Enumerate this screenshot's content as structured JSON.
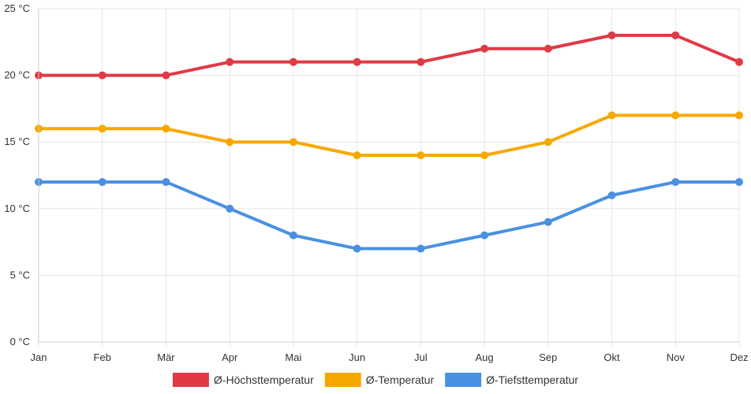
{
  "chart_data": {
    "type": "line",
    "title": "",
    "xlabel": "",
    "ylabel": "",
    "categories": [
      "Jan",
      "Feb",
      "Mär",
      "Apr",
      "Mai",
      "Jun",
      "Jul",
      "Aug",
      "Sep",
      "Okt",
      "Nov",
      "Dez"
    ],
    "y_ticks": [
      "0 °C",
      "5 °C",
      "10 °C",
      "15 °C",
      "20 °C",
      "25 °C"
    ],
    "y_tick_values": [
      0,
      5,
      10,
      15,
      20,
      25
    ],
    "ylim": [
      0,
      25
    ],
    "grid": true,
    "legend_position": "bottom",
    "series": [
      {
        "name": "Ø-Höchsttemperatur",
        "color": "#e03a45",
        "values": [
          20,
          20,
          20,
          21,
          21,
          21,
          21,
          22,
          22,
          23,
          23,
          21
        ]
      },
      {
        "name": "Ø-Temperatur",
        "color": "#f7a800",
        "values": [
          16,
          16,
          16,
          15,
          15,
          14,
          14,
          14,
          15,
          17,
          17,
          17
        ]
      },
      {
        "name": "Ø-Tiefsttemperatur",
        "color": "#4a90e2",
        "values": [
          12,
          12,
          12,
          10,
          8,
          7,
          7,
          8,
          9,
          11,
          12,
          12
        ]
      }
    ]
  }
}
